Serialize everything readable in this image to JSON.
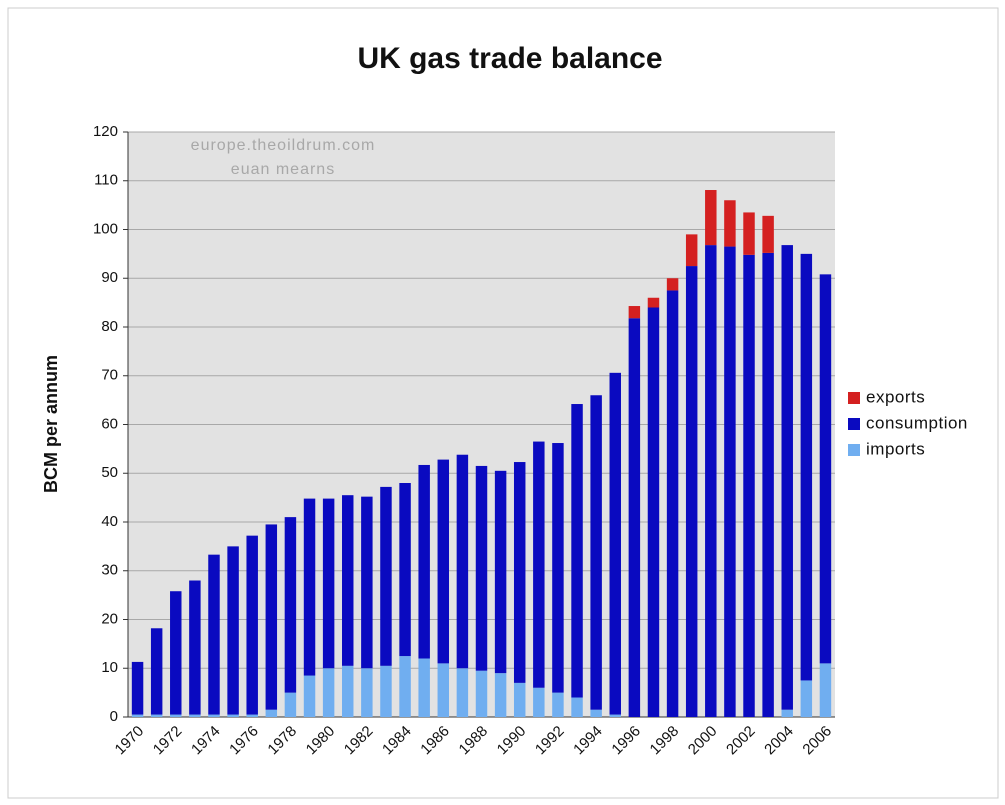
{
  "chart_data": {
    "type": "stacked_bar",
    "title": "UK gas trade balance",
    "y_label": "BCM per annum",
    "annotations": [
      "europe.theoildrum.com",
      "euan mearns"
    ],
    "categories": [
      "1970",
      null,
      "1972",
      null,
      "1974",
      null,
      "1976",
      null,
      "1978",
      null,
      "1980",
      null,
      "1982",
      null,
      "1984",
      null,
      "1986",
      null,
      "1988",
      null,
      "1990",
      null,
      "1992",
      null,
      "1994",
      null,
      "1996",
      null,
      "1998",
      null,
      "2000",
      null,
      "2002",
      null,
      "2004",
      null,
      "2006"
    ],
    "series": [
      {
        "name": "exports",
        "color": "#d42020",
        "values": [
          0,
          0,
          0,
          0,
          0,
          0,
          0,
          0,
          0,
          0,
          0,
          0,
          0,
          0,
          0,
          0,
          0,
          0,
          0,
          0,
          0,
          0,
          0,
          0,
          0,
          0,
          2.5,
          2,
          2.5,
          6.5,
          11.3,
          9.5,
          8.7,
          7.6,
          0,
          0,
          0
        ]
      },
      {
        "name": "consumption",
        "color": "#0a0ac0",
        "values": [
          10.8,
          17.7,
          25.3,
          27.5,
          32.8,
          34.5,
          36.7,
          38,
          36,
          36.3,
          34.8,
          35,
          35.2,
          36.7,
          35.5,
          39.7,
          41.8,
          43.8,
          42,
          41.5,
          45.3,
          50.5,
          51.2,
          60.2,
          64.5,
          70.1,
          81.8,
          84,
          87.5,
          92.5,
          96.8,
          96.5,
          94.8,
          95.2,
          95.3,
          87.5,
          79.8
        ]
      },
      {
        "name": "imports",
        "color": "#70aef0",
        "values": [
          0.5,
          0.5,
          0.5,
          0.5,
          0.5,
          0.5,
          0.5,
          1.5,
          5,
          8.5,
          10,
          10.5,
          10,
          10.5,
          12.5,
          12,
          11,
          10,
          9.5,
          9,
          7,
          6,
          5,
          4,
          1.5,
          0.5,
          0,
          0,
          0,
          0,
          0,
          0,
          0,
          0,
          1.5,
          7.5,
          11
        ]
      }
    ],
    "ylim": [
      0,
      120
    ],
    "yticks": [
      0,
      10,
      20,
      30,
      40,
      50,
      60,
      70,
      80,
      90,
      100,
      110,
      120
    ],
    "grid": true,
    "legend": "right"
  }
}
